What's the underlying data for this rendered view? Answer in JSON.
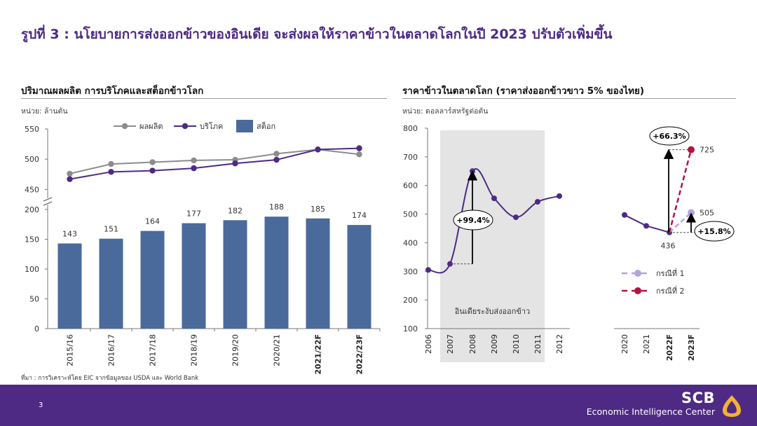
{
  "page": {
    "title": "รูปที่ 3 : นโยบายการส่งออกข้าวของอินเดีย จะส่งผลให้ราคาข้าวในตลาดโลกในปี 2023 ปรับตัวเพิ่มขึ้น",
    "source": "ที่มา : การวิเคราะห์โดย EIC จากข้อมูลของ USDA และ World Bank",
    "page_number": "3",
    "brand_name": "SCB",
    "brand_sub": "Economic Intelligence Center"
  },
  "colors": {
    "accent": "#4e2a84",
    "bar": "#4a6a9b",
    "production": "#8c8c8c",
    "consumption": "#4e2a84",
    "case1": "#b5a3dc",
    "case2": "#b5123f",
    "shade": "#e4e4e4"
  },
  "chart_data": [
    {
      "type": "bar",
      "title": "ปริมาณผลผลิต การบริโภคและสต็อกข้าวโลก",
      "unit": "หน่วย: ล้านตัน",
      "categories": [
        "2015/16",
        "2016/17",
        "2017/18",
        "2018/19",
        "2019/20",
        "2020/21",
        "2021/22F",
        "2022/23F"
      ],
      "bold_categories": [
        "2021/22F",
        "2022/23F"
      ],
      "series": [
        {
          "name": "ผลผลิต",
          "kind": "line",
          "values": [
            476,
            492,
            495,
            498,
            499,
            509,
            516,
            508
          ]
        },
        {
          "name": "บริโภค",
          "kind": "line",
          "values": [
            467,
            479,
            481,
            485,
            493,
            499,
            516,
            518
          ]
        },
        {
          "name": "สต็อก",
          "kind": "bar",
          "values": [
            143,
            151,
            164,
            177,
            182,
            188,
            185,
            174
          ]
        }
      ],
      "bar_labels": [
        "143",
        "151",
        "164",
        "177",
        "182",
        "188",
        "185",
        "174"
      ],
      "y_upper": {
        "ticks": [
          "450",
          "500",
          "550"
        ],
        "range": [
          440,
          550
        ]
      },
      "y_lower": {
        "ticks": [
          "0",
          "50",
          "100",
          "150",
          "200"
        ],
        "range": [
          0,
          200
        ]
      },
      "axis_break": true,
      "grid": false,
      "legend": "top"
    },
    {
      "type": "line",
      "title": "ราคาข้าวในตลาดโลก (ราคาส่งออกข้าวขาว 5% ของไทย)",
      "unit": "หน่วย: ดอลลาร์สหรัฐต่อตัน",
      "x_labels": [
        "2006",
        "2007",
        "2008",
        "2009",
        "2010",
        "2011",
        "2012",
        "2020",
        "2021",
        "2022F",
        "2023F"
      ],
      "bold_x_labels": [
        "2022F",
        "2023F"
      ],
      "y_ticks": [
        "100",
        "200",
        "300",
        "400",
        "500",
        "600",
        "700",
        "800"
      ],
      "ylim": [
        100,
        800
      ],
      "series": [
        {
          "name": "historical-2006-2012",
          "x": [
            "2006",
            "2007",
            "2008",
            "2009",
            "2010",
            "2011",
            "2012"
          ],
          "values": [
            305,
            326,
            650,
            555,
            489,
            543,
            563
          ]
        },
        {
          "name": "historical-2020-2022F",
          "x": [
            "2020",
            "2021",
            "2022F"
          ],
          "values": [
            497,
            459,
            436
          ]
        },
        {
          "name": "กรณีที่ 1",
          "x": [
            "2022F",
            "2023F"
          ],
          "values": [
            436,
            505
          ],
          "dashed": true
        },
        {
          "name": "กรณีที่ 2",
          "x": [
            "2022F",
            "2023F"
          ],
          "values": [
            436,
            725
          ],
          "dashed": true
        }
      ],
      "shaded_period": {
        "from": "2007",
        "to": "2011",
        "label": "อินเดียระงับส่งออกข้าว"
      },
      "annotations": {
        "rise_2008": "+99.4%",
        "case2_change": "+66.3%",
        "case1_change": "+15.8%",
        "label_725": "725",
        "label_505": "505",
        "label_436": "436"
      },
      "legend": "bottom-right",
      "grid": false
    }
  ]
}
